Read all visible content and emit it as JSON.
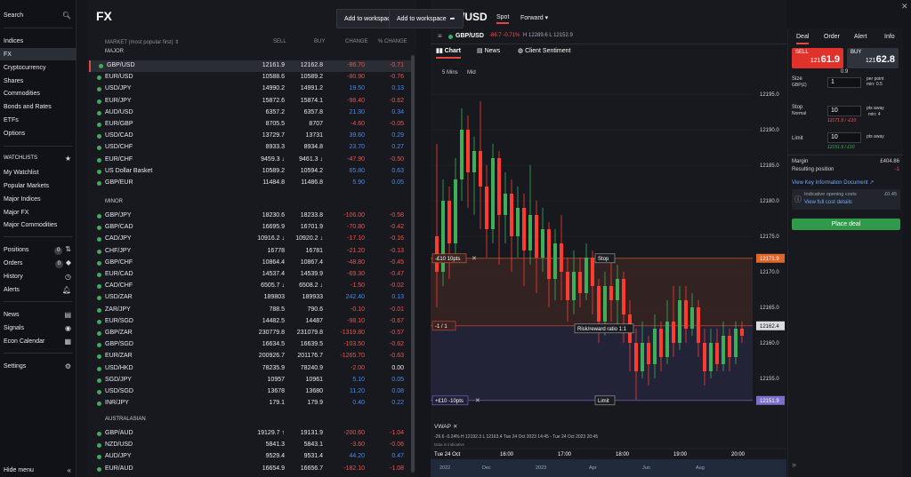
{
  "sidebar": {
    "search": "Search",
    "nav": [
      "Indices",
      "FX",
      "Cryptocurrency",
      "Shares",
      "Commodities",
      "Bonds and Rates",
      "ETFs",
      "Options"
    ],
    "watchlists_label": "WATCHLISTS",
    "watchlists": [
      "My Watchlist",
      "Popular Markets",
      "Major Indices",
      "Major FX",
      "Major Commodities"
    ],
    "positions": "Positions",
    "positions_count": "0",
    "orders": "Orders",
    "orders_count": "0",
    "history": "History",
    "alerts": "Alerts",
    "news": "News",
    "signals": "Signals",
    "econ": "Econ Calendar",
    "settings": "Settings",
    "hide": "Hide menu"
  },
  "fx": {
    "title": "FX",
    "add_ws": "Add to workspace",
    "headers": {
      "market": "MARKET (most popular first) ⇕",
      "sell": "SELL",
      "buy": "BUY",
      "change": "CHANGE",
      "pct": "% CHANGE"
    },
    "groups": [
      {
        "name": "MAJOR",
        "rows": [
          [
            "GBP/USD",
            "12161.9",
            "12162.8",
            "-86.70",
            "-0.71"
          ],
          [
            "EUR/USD",
            "10588.6",
            "10589.2",
            "-80.90",
            "-0.76"
          ],
          [
            "USD/JPY",
            "14990.2",
            "14991.2",
            "19.50",
            "0.13"
          ],
          [
            "EUR/JPY",
            "15872.6",
            "15874.1",
            "-98.40",
            "-0.62"
          ],
          [
            "AUD/USD",
            "6357.2",
            "6357.8",
            "21.30",
            "0.34"
          ],
          [
            "EUR/GBP",
            "8705.5",
            "8707",
            "-4.60",
            "-0.05"
          ],
          [
            "USD/CAD",
            "13729.7",
            "13731",
            "39.60",
            "0.29"
          ],
          [
            "USD/CHF",
            "8933.3",
            "8934.8",
            "23.70",
            "0.27"
          ],
          [
            "EUR/CHF",
            "9459.3 ↓",
            "9461.3 ↓",
            "-47.90",
            "-0.50"
          ],
          [
            "US Dollar Basket",
            "10589.2",
            "10594.2",
            "65.80",
            "0.63"
          ],
          [
            "GBP/EUR",
            "11484.8",
            "11486.8",
            "5.90",
            "0.05"
          ]
        ]
      },
      {
        "name": "MINOR",
        "rows": [
          [
            "GBP/JPY",
            "18230.6",
            "18233.8",
            "-106.00",
            "-0.58"
          ],
          [
            "GBP/CAD",
            "16695.9",
            "16701.9",
            "-70.80",
            "-0.42"
          ],
          [
            "CAD/JPY",
            "10916.2 ↓",
            "10920.2 ↓",
            "-17.10",
            "-0.16"
          ],
          [
            "CHF/JPY",
            "16778",
            "16781",
            "-21.20",
            "-0.13"
          ],
          [
            "GBP/CHF",
            "10864.4",
            "10867.4",
            "-48.80",
            "-0.45"
          ],
          [
            "EUR/CAD",
            "14537.4",
            "14539.9",
            "-69.30",
            "-0.47"
          ],
          [
            "CAD/CHF",
            "6505.7 ↓",
            "6508.2 ↓",
            "-1.50",
            "-0.02"
          ],
          [
            "USD/ZAR",
            "189803",
            "189933",
            "242.40",
            "0.13"
          ],
          [
            "ZAR/JPY",
            "788.5",
            "790.6",
            "-0.10",
            "-0.01"
          ],
          [
            "EUR/SGD",
            "14482.5",
            "14487",
            "-98.10",
            "-0.67"
          ],
          [
            "GBP/ZAR",
            "230779.8",
            "231079.8",
            "-1319.80",
            "-0.57"
          ],
          [
            "GBP/SGD",
            "16634.5",
            "16639.5",
            "-103.50",
            "-0.62"
          ],
          [
            "EUR/ZAR",
            "200926.7",
            "201176.7",
            "-1265.70",
            "-0.63"
          ],
          [
            "USD/HKD",
            "78235.9",
            "78240.9",
            "-2.00",
            "0.00"
          ],
          [
            "SGD/JPY",
            "10957",
            "10961",
            "5.10",
            "0.05"
          ],
          [
            "USD/SGD",
            "13678",
            "13680",
            "11.20",
            "0.08"
          ],
          [
            "INR/JPY",
            "179.1",
            "179.9",
            "0.40",
            "0.22"
          ]
        ]
      },
      {
        "name": "AUSTRALASIAN",
        "rows": [
          [
            "GBP/AUD",
            "19129.7 ↑",
            "19131.9",
            "-200.60",
            "-1.04"
          ],
          [
            "NZD/USD",
            "5841.3",
            "5843.1",
            "-3.60",
            "-0.06"
          ],
          [
            "AUD/JPY",
            "9529.4",
            "9531.4",
            "44.20",
            "0.47"
          ],
          [
            "EUR/AUD",
            "16654.9",
            "16656.7",
            "-182.10",
            "-1.08"
          ]
        ]
      }
    ]
  },
  "chart": {
    "pair": "GBP/USD",
    "spot": "Spot",
    "forward": "Forward",
    "add_ws": "Add to workspace",
    "ohlc_pair": "GBP/USD",
    "ohlc_change": "-86.7 -0.71%",
    "ohlc_vals": "H 12289.6 L 12152.9",
    "tabs": [
      "Chart",
      "News",
      "Client Sentiment"
    ],
    "timeframe": "5 Mins",
    "price_type": "Mid",
    "stop_label": "Stop",
    "limit_label": "Limit",
    "rr_label": "Risk/reward ratio 1:1",
    "stop_tag": "-£10  10pts",
    "mid_tag": "-1 / 1",
    "limit_tag": "+£10  -10pts",
    "stop_price": "12171.9",
    "cur_price": "12162.4",
    "limit_price": "12151.9",
    "y_ticks": [
      "12195.0",
      "12190.0",
      "12185.0",
      "12180.0",
      "12175.0",
      "12170.0",
      "12165.0",
      "12160.0",
      "12155.0"
    ],
    "vwap": "VWAP",
    "vwap_vals": "-26.6  -0.24%  H 12192.3  L 12163.4  Tue 24 Oct 2023 14:45 - Tue 24 Oct 2023 20:45",
    "data_note": "Data is indicative",
    "x_ticks": [
      "Tue 24 Oct",
      "16:00",
      "17:00",
      "18:00",
      "19:00",
      "20:00"
    ],
    "nav_ticks": [
      "2022",
      "Dec",
      "2023",
      "Apr",
      "Jun",
      "Aug"
    ]
  },
  "deal": {
    "tabs": [
      "Deal",
      "Order",
      "Alert",
      "Info"
    ],
    "sell_label": "SELL",
    "sell_price_small": "121",
    "sell_price_big": "61.9",
    "buy_label": "BUY",
    "buy_price_small": "121",
    "buy_price_big": "62.8",
    "spread": "0.9",
    "size_label": "Size",
    "size_ccy": "GBP(£)",
    "size_val": "1",
    "size_note": "per point\nmin: 0.5",
    "stop_label": "Stop",
    "stop_type": "Normal",
    "stop_val": "10",
    "stop_unit": "pts away",
    "stop_min": "min: 4",
    "stop_calc": "12171.9 / -£10",
    "limit_label": "Limit",
    "limit_val": "10",
    "limit_unit": "pts away",
    "limit_calc": "12151.9 / £10",
    "margin_label": "Margin",
    "margin_val": "£404.86",
    "resulting_label": "Resulting position",
    "resulting_val": "-1",
    "kid": "View Key Information Document",
    "indicative": "Indicative opening costs",
    "indicative_val": "£0.45",
    "view_cost": "View full cost details",
    "place": "Place deal"
  },
  "colors": {
    "bull": "#3fae5a",
    "bear": "#ff3b30",
    "accent": "#e0493f"
  }
}
